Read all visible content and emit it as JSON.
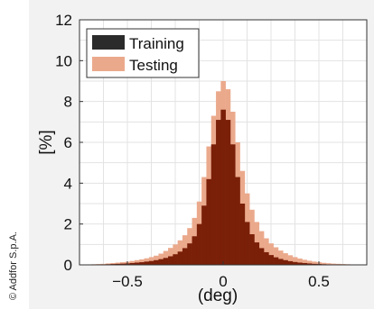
{
  "credit": "© Addfor S.p.A.",
  "chart_data": {
    "type": "bar",
    "title": "",
    "xlabel": "(deg)",
    "ylabel": "[%]",
    "xlim": [
      -0.75,
      0.75
    ],
    "ylim": [
      0,
      12
    ],
    "xticks": [
      -0.5,
      0,
      0.5
    ],
    "xtick_labels": [
      "−0.5",
      "0",
      "0.5"
    ],
    "yticks": [
      0,
      2,
      4,
      6,
      8,
      10,
      12
    ],
    "ytick_labels": [
      "0",
      "2",
      "4",
      "6",
      "8",
      "10",
      "12"
    ],
    "grid": true,
    "legend_position": "top-left",
    "bin_width": 0.025,
    "x": [
      -0.7,
      -0.675,
      -0.65,
      -0.625,
      -0.6,
      -0.575,
      -0.55,
      -0.525,
      -0.5,
      -0.475,
      -0.45,
      -0.425,
      -0.4,
      -0.375,
      -0.35,
      -0.325,
      -0.3,
      -0.275,
      -0.25,
      -0.225,
      -0.2,
      -0.175,
      -0.15,
      -0.125,
      -0.1,
      -0.075,
      -0.05,
      -0.025,
      0,
      0.025,
      0.05,
      0.075,
      0.1,
      0.125,
      0.15,
      0.175,
      0.2,
      0.225,
      0.25,
      0.275,
      0.3,
      0.325,
      0.35,
      0.375,
      0.4,
      0.425,
      0.45,
      0.475,
      0.5,
      0.525,
      0.55,
      0.575,
      0.6,
      0.625,
      0.65,
      0.675,
      0.7,
      0.725
    ],
    "series": [
      {
        "name": "Testing",
        "color": "#eba98c",
        "values": [
          0.02,
          0.03,
          0.04,
          0.05,
          0.07,
          0.09,
          0.11,
          0.13,
          0.15,
          0.19,
          0.23,
          0.27,
          0.32,
          0.38,
          0.45,
          0.55,
          0.68,
          0.83,
          1.0,
          1.2,
          1.45,
          1.8,
          2.3,
          3.1,
          4.3,
          5.8,
          7.3,
          8.5,
          9.0,
          8.6,
          7.5,
          6.0,
          4.6,
          3.5,
          2.7,
          2.1,
          1.65,
          1.3,
          1.05,
          0.86,
          0.7,
          0.57,
          0.47,
          0.38,
          0.31,
          0.25,
          0.2,
          0.16,
          0.13,
          0.1,
          0.08,
          0.06,
          0.05,
          0.04,
          0.03,
          0.02,
          0.02,
          0.01
        ]
      },
      {
        "name": "Training",
        "color": "#7a1f08",
        "values": [
          0.01,
          0.01,
          0.02,
          0.02,
          0.03,
          0.04,
          0.05,
          0.06,
          0.07,
          0.09,
          0.11,
          0.13,
          0.16,
          0.19,
          0.23,
          0.28,
          0.34,
          0.42,
          0.52,
          0.65,
          0.82,
          1.05,
          1.4,
          2.0,
          2.9,
          4.2,
          5.9,
          7.1,
          7.6,
          7.1,
          5.9,
          4.3,
          3.0,
          2.1,
          1.5,
          1.1,
          0.82,
          0.62,
          0.48,
          0.37,
          0.29,
          0.23,
          0.18,
          0.14,
          0.11,
          0.09,
          0.07,
          0.05,
          0.04,
          0.03,
          0.02,
          0.02,
          0.01,
          0.01,
          0.01,
          0.01,
          0.0,
          0.0
        ]
      }
    ],
    "legend": [
      {
        "label": "Training",
        "color": "#2b2b2b"
      },
      {
        "label": "Testing",
        "color": "#eba98c"
      }
    ],
    "colors": {
      "overlap": "#7a1f08",
      "testing": "#eba98c",
      "legend_training": "#2b2b2b"
    }
  }
}
